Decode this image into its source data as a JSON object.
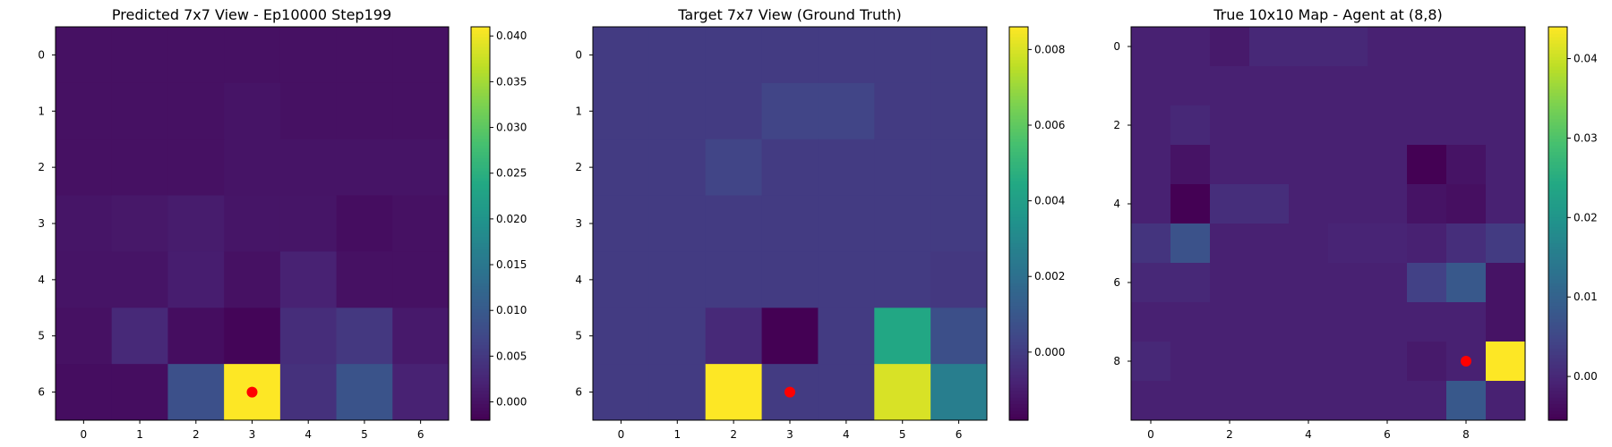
{
  "colormap": "viridis",
  "chart_data": [
    {
      "type": "heatmap",
      "title": "Predicted 7x7 View - Ep10000 Step199",
      "xticks": [
        "0",
        "1",
        "2",
        "3",
        "4",
        "5",
        "6"
      ],
      "yticks": [
        "0",
        "1",
        "2",
        "3",
        "4",
        "5",
        "6"
      ],
      "rows": 7,
      "cols": 7,
      "values": [
        [
          0.0,
          0.0,
          0.0,
          0.0,
          0.0,
          0.0,
          0.0
        ],
        [
          0.0,
          0.0,
          0.0,
          0.0003,
          0.0,
          0.0,
          0.0
        ],
        [
          0.0,
          0.0,
          0.0,
          0.0003,
          0.0003,
          0.0003,
          0.0003
        ],
        [
          0.0005,
          0.0008,
          0.0013,
          0.0005,
          0.0005,
          -0.0005,
          0.0
        ],
        [
          0.0003,
          0.0003,
          0.0015,
          0.0,
          0.002,
          0.0,
          0.0
        ],
        [
          0.0,
          0.003,
          -0.0005,
          -0.0015,
          0.0035,
          0.005,
          0.001
        ],
        [
          -0.0005,
          -0.0005,
          0.0085,
          0.041,
          0.004,
          0.009,
          0.002
        ]
      ],
      "vmin": -0.002,
      "vmax": 0.041,
      "colorbar_ticks": [
        "0.000",
        "0.005",
        "0.010",
        "0.015",
        "0.020",
        "0.025",
        "0.030",
        "0.035",
        "0.040"
      ],
      "colorbar_tick_values": [
        0,
        0.005,
        0.01,
        0.015,
        0.02,
        0.025,
        0.03,
        0.035,
        0.04
      ],
      "marker": {
        "x": 3,
        "y": 6,
        "color": "#ff0000"
      }
    },
    {
      "type": "heatmap",
      "title": "Target 7x7 View (Ground Truth)",
      "xticks": [
        "0",
        "1",
        "2",
        "3",
        "4",
        "5",
        "6"
      ],
      "yticks": [
        "0",
        "1",
        "2",
        "3",
        "4",
        "5",
        "6"
      ],
      "rows": 7,
      "cols": 7,
      "values": [
        [
          0,
          0,
          0,
          0,
          0,
          0,
          0
        ],
        [
          0,
          0,
          0,
          0.0003,
          0.0003,
          0,
          0
        ],
        [
          0,
          0,
          0.0003,
          0,
          0,
          0,
          0
        ],
        [
          0,
          0,
          0,
          0,
          0,
          0,
          0
        ],
        [
          0,
          0,
          0,
          0,
          0,
          0,
          -0.0001
        ],
        [
          0,
          0,
          -0.0006,
          -0.0018,
          0,
          0.0044,
          0.0007
        ],
        [
          0,
          0,
          0.0086,
          0,
          0,
          0.008,
          0.0026
        ]
      ],
      "vmin": -0.0018,
      "vmax": 0.0086,
      "colorbar_ticks": [
        "0.000",
        "0.002",
        "0.004",
        "0.006",
        "0.008"
      ],
      "colorbar_tick_values": [
        0,
        0.002,
        0.004,
        0.006,
        0.008
      ],
      "marker": {
        "x": 3,
        "y": 6,
        "color": "#ff0000"
      }
    },
    {
      "type": "heatmap",
      "title": "True 10x10 Map - Agent at (8,8)",
      "xticks": [
        "0",
        "2",
        "4",
        "6",
        "8"
      ],
      "yticks": [
        "0",
        "2",
        "4",
        "6",
        "8"
      ],
      "xtick_values": [
        0,
        2,
        4,
        6,
        8
      ],
      "ytick_values": [
        0,
        2,
        4,
        6,
        8
      ],
      "rows": 10,
      "cols": 10,
      "values": [
        [
          -0.001,
          -0.001,
          -0.002,
          0,
          0,
          0,
          -0.001,
          -0.001,
          -0.001,
          -0.001
        ],
        [
          -0.001,
          -0.001,
          -0.001,
          -0.001,
          -0.001,
          -0.001,
          -0.001,
          -0.001,
          -0.001,
          -0.001
        ],
        [
          -0.001,
          0,
          -0.001,
          -0.001,
          -0.001,
          -0.001,
          -0.001,
          -0.001,
          -0.001,
          -0.001
        ],
        [
          -0.001,
          -0.003,
          -0.001,
          -0.001,
          -0.001,
          -0.001,
          -0.001,
          -0.0055,
          -0.003,
          -0.001
        ],
        [
          -0.001,
          -0.0055,
          0.001,
          0.001,
          -0.001,
          -0.001,
          -0.001,
          -0.003,
          -0.0035,
          -0.001
        ],
        [
          0.002,
          0.007,
          -0.001,
          -0.001,
          -0.001,
          -0.0005,
          -0.0005,
          -0.001,
          0.001,
          0.003
        ],
        [
          0,
          0,
          -0.001,
          -0.001,
          -0.001,
          -0.001,
          -0.001,
          0.004,
          0.008,
          -0.003
        ],
        [
          -0.001,
          -0.001,
          -0.001,
          -0.001,
          -0.001,
          -0.001,
          -0.001,
          -0.001,
          -0.001,
          -0.003
        ],
        [
          0,
          -0.001,
          -0.001,
          -0.001,
          -0.001,
          -0.001,
          -0.001,
          -0.002,
          -0.001,
          0.044
        ],
        [
          -0.001,
          -0.001,
          -0.001,
          -0.001,
          -0.001,
          -0.001,
          -0.001,
          -0.001,
          0.008,
          -0.001
        ]
      ],
      "vmin": -0.0055,
      "vmax": 0.044,
      "colorbar_ticks": [
        "0.00",
        "0.01",
        "0.02",
        "0.03",
        "0.04"
      ],
      "colorbar_tick_values": [
        0,
        0.01,
        0.02,
        0.03,
        0.04
      ],
      "marker": {
        "x": 8,
        "y": 8,
        "color": "#ff0000"
      }
    }
  ]
}
